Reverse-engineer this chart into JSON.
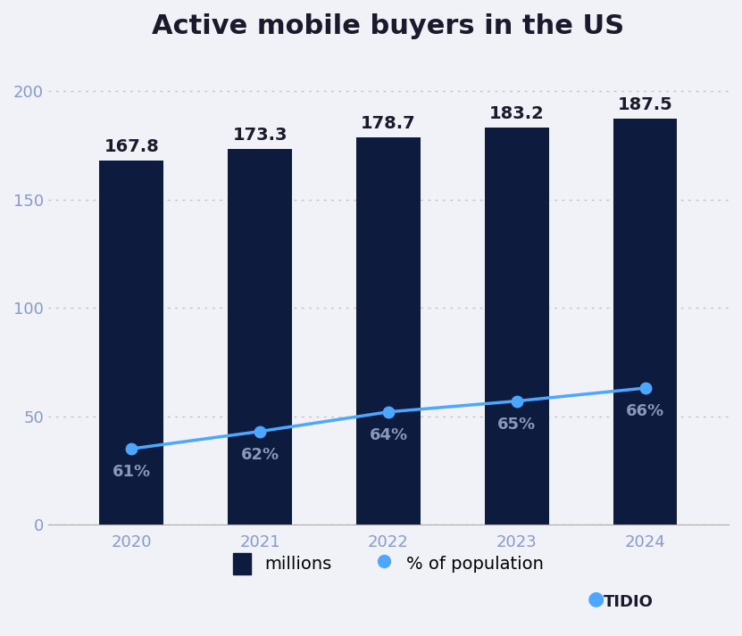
{
  "title": "Active mobile buyers in the US",
  "years": [
    "2020",
    "2021",
    "2022",
    "2023",
    "2024"
  ],
  "bar_values": [
    167.8,
    173.3,
    178.7,
    183.2,
    187.5
  ],
  "bar_labels": [
    "167.8",
    "173.3",
    "178.7",
    "183.2",
    "187.5"
  ],
  "line_values": [
    35,
    43,
    52,
    57,
    63
  ],
  "line_labels": [
    "61%",
    "62%",
    "64%",
    "65%",
    "66%"
  ],
  "bar_color": "#0d1b3e",
  "line_color": "#4da6ff",
  "line_marker_color": "#4da6ff",
  "background_color": "#f0f2f7",
  "plot_bg_color": "#f0f2f7",
  "title_fontsize": 22,
  "bar_label_fontsize": 14,
  "line_label_fontsize": 13,
  "tick_fontsize": 13,
  "legend_fontsize": 14,
  "ylim": [
    0,
    215
  ],
  "yticks": [
    0,
    50,
    100,
    150,
    200
  ],
  "legend_labels": [
    "millions",
    "% of population"
  ],
  "grid_color": "#c0c4cc",
  "bar_width": 0.5,
  "label_color": "#8899bb",
  "bar_label_color": "#1a1a2e",
  "tick_color": "#8899cc"
}
